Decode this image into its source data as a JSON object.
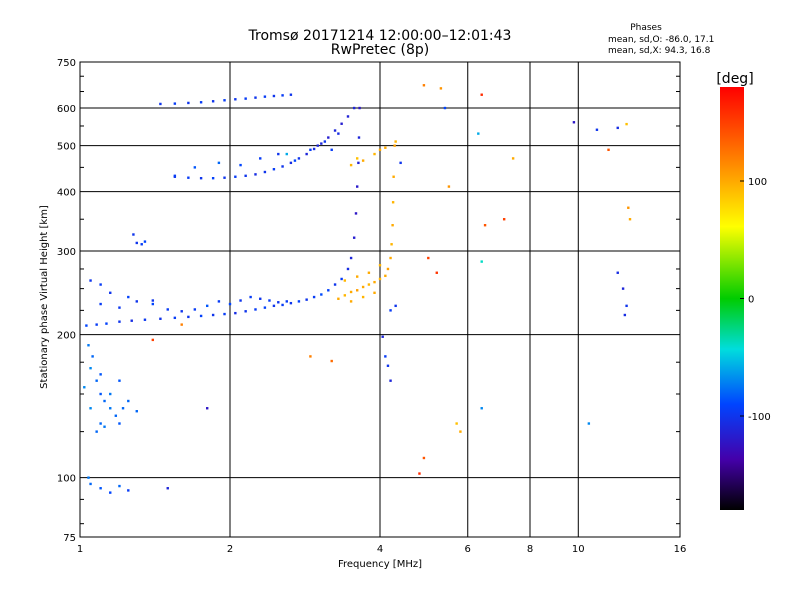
{
  "chart_data": {
    "type": "scatter",
    "title": "Tromsø 20171214 12:00:00–12:01:43",
    "subtitle": "RwPretec (8p)",
    "xlabel": "Frequency [MHz]",
    "ylabel": "Stationary phase Virtual Height [km]",
    "xscale": "log2",
    "yscale": "log",
    "xlim": [
      1,
      16
    ],
    "ylim": [
      75,
      750
    ],
    "xticks": [
      1,
      2,
      4,
      6,
      8,
      10,
      16
    ],
    "xtick_labels": [
      "1",
      "2",
      "4",
      "6",
      "8",
      "10",
      "16"
    ],
    "yticks": [
      75,
      100,
      200,
      300,
      400,
      500,
      600,
      750
    ],
    "ytick_labels": [
      "75",
      "100",
      "200",
      "300",
      "400",
      "500",
      "600",
      "750"
    ],
    "grid": true,
    "stats": {
      "heading": "Phases",
      "line_o": "mean, sd,O: -86.0, 17.1",
      "line_x": "mean, sd,X:  94.3, 16.8"
    },
    "colorbar": {
      "label": "[deg]",
      "range": [
        -180,
        180
      ],
      "ticks": [
        100,
        0,
        -100
      ],
      "tick_labels": [
        "100",
        "0",
        "-100"
      ]
    },
    "points": [
      [
        1.03,
        209,
        -90
      ],
      [
        1.08,
        210,
        -95
      ],
      [
        1.13,
        211,
        -92
      ],
      [
        1.2,
        213,
        -100
      ],
      [
        1.27,
        214,
        -105
      ],
      [
        1.35,
        215,
        -98
      ],
      [
        1.45,
        216,
        -102
      ],
      [
        1.55,
        217,
        -95
      ],
      [
        1.65,
        218,
        -100
      ],
      [
        1.75,
        219,
        -92
      ],
      [
        1.85,
        220,
        -100
      ],
      [
        1.95,
        221,
        -95
      ],
      [
        2.05,
        222,
        -105
      ],
      [
        2.15,
        224,
        -100
      ],
      [
        2.25,
        226,
        -95
      ],
      [
        2.35,
        228,
        -92
      ],
      [
        2.45,
        230,
        -100
      ],
      [
        2.55,
        231,
        -95
      ],
      [
        2.65,
        233,
        -100
      ],
      [
        2.75,
        235,
        -92
      ],
      [
        2.85,
        237,
        -100
      ],
      [
        2.95,
        240,
        -95
      ],
      [
        3.05,
        243,
        -88
      ],
      [
        3.15,
        248,
        -92
      ],
      [
        3.25,
        255,
        -100
      ],
      [
        3.35,
        262,
        -95
      ],
      [
        3.45,
        275,
        -105
      ],
      [
        3.5,
        290,
        -110
      ],
      [
        3.55,
        320,
        -115
      ],
      [
        3.58,
        360,
        -120
      ],
      [
        3.6,
        410,
        -118
      ],
      [
        3.62,
        460,
        -112
      ],
      [
        3.63,
        520,
        -110
      ],
      [
        3.64,
        600,
        -120
      ],
      [
        1.1,
        232,
        -95
      ],
      [
        1.2,
        228,
        -98
      ],
      [
        1.3,
        235,
        -100
      ],
      [
        1.4,
        232,
        -90
      ],
      [
        1.5,
        226,
        -95
      ],
      [
        1.6,
        224,
        -100
      ],
      [
        1.7,
        226,
        -95
      ],
      [
        1.8,
        230,
        -85
      ],
      [
        1.9,
        235,
        -95
      ],
      [
        2.0,
        232,
        -90
      ],
      [
        2.1,
        236,
        -100
      ],
      [
        2.2,
        240,
        -95
      ],
      [
        2.3,
        238,
        -100
      ],
      [
        2.4,
        236,
        -95
      ],
      [
        2.5,
        234,
        -100
      ],
      [
        2.6,
        235,
        -95
      ],
      [
        1.05,
        260,
        -100
      ],
      [
        1.1,
        255,
        -95
      ],
      [
        1.15,
        245,
        -100
      ],
      [
        1.25,
        240,
        -92
      ],
      [
        1.4,
        236,
        -100
      ],
      [
        1.3,
        312,
        -100
      ],
      [
        1.33,
        310,
        -95
      ],
      [
        1.35,
        314,
        -90
      ],
      [
        1.28,
        325,
        -100
      ],
      [
        1.55,
        430,
        -100
      ],
      [
        1.65,
        428,
        -95
      ],
      [
        1.75,
        427,
        -100
      ],
      [
        1.85,
        427,
        -92
      ],
      [
        1.95,
        428,
        -100
      ],
      [
        2.05,
        430,
        -95
      ],
      [
        2.15,
        432,
        -100
      ],
      [
        2.25,
        435,
        -105
      ],
      [
        2.35,
        440,
        -100
      ],
      [
        2.45,
        446,
        -95
      ],
      [
        2.55,
        452,
        -100
      ],
      [
        2.65,
        460,
        -105
      ],
      [
        2.75,
        470,
        -100
      ],
      [
        2.85,
        480,
        -110
      ],
      [
        2.95,
        492,
        -105
      ],
      [
        3.05,
        505,
        -110
      ],
      [
        3.15,
        520,
        -115
      ],
      [
        3.25,
        538,
        -110
      ],
      [
        3.35,
        556,
        -115
      ],
      [
        3.45,
        576,
        -112
      ],
      [
        3.55,
        600,
        -110
      ],
      [
        1.55,
        432,
        -95
      ],
      [
        1.7,
        450,
        -85
      ],
      [
        1.9,
        460,
        -80
      ],
      [
        2.1,
        455,
        -90
      ],
      [
        2.3,
        470,
        -95
      ],
      [
        2.5,
        480,
        -100
      ],
      [
        2.7,
        465,
        -90
      ],
      [
        2.9,
        490,
        -95
      ],
      [
        3.1,
        510,
        -100
      ],
      [
        3.3,
        530,
        -105
      ],
      [
        1.45,
        612,
        -100
      ],
      [
        1.55,
        613,
        -95
      ],
      [
        1.65,
        615,
        -100
      ],
      [
        1.75,
        617,
        -95
      ],
      [
        1.85,
        620,
        -100
      ],
      [
        1.95,
        623,
        -95
      ],
      [
        2.05,
        626,
        -100
      ],
      [
        2.15,
        628,
        -95
      ],
      [
        2.25,
        631,
        -100
      ],
      [
        2.35,
        634,
        -95
      ],
      [
        2.45,
        636,
        -100
      ],
      [
        2.55,
        638,
        -95
      ],
      [
        2.65,
        640,
        -100
      ],
      [
        3.3,
        238,
        100
      ],
      [
        3.4,
        242,
        95
      ],
      [
        3.5,
        246,
        100
      ],
      [
        3.6,
        248,
        105
      ],
      [
        3.7,
        252,
        100
      ],
      [
        3.8,
        255,
        95
      ],
      [
        3.9,
        258,
        100
      ],
      [
        4.0,
        262,
        95
      ],
      [
        4.1,
        266,
        100
      ],
      [
        4.15,
        275,
        105
      ],
      [
        4.2,
        290,
        100
      ],
      [
        4.22,
        310,
        95
      ],
      [
        4.24,
        340,
        100
      ],
      [
        4.25,
        380,
        95
      ],
      [
        4.26,
        430,
        100
      ],
      [
        4.28,
        500,
        105
      ],
      [
        3.4,
        260,
        95
      ],
      [
        3.6,
        265,
        100
      ],
      [
        3.8,
        270,
        100
      ],
      [
        4.0,
        280,
        95
      ],
      [
        3.5,
        235,
        100
      ],
      [
        3.7,
        240,
        95
      ],
      [
        3.9,
        245,
        100
      ],
      [
        3.5,
        455,
        95
      ],
      [
        3.7,
        465,
        100
      ],
      [
        3.9,
        480,
        95
      ],
      [
        4.1,
        495,
        100
      ],
      [
        4.3,
        510,
        95
      ],
      [
        3.6,
        470,
        90
      ],
      [
        4.0,
        490,
        100
      ],
      [
        1.04,
        190,
        -75
      ],
      [
        1.06,
        180,
        -80
      ],
      [
        1.05,
        170,
        -70
      ],
      [
        1.08,
        160,
        -80
      ],
      [
        1.1,
        150,
        -85
      ],
      [
        1.12,
        145,
        -80
      ],
      [
        1.15,
        140,
        -75
      ],
      [
        1.18,
        135,
        -80
      ],
      [
        1.2,
        130,
        -85
      ],
      [
        1.22,
        140,
        -80
      ],
      [
        1.15,
        150,
        -75
      ],
      [
        1.1,
        130,
        -80
      ],
      [
        1.05,
        140,
        -70
      ],
      [
        1.08,
        125,
        -80
      ],
      [
        1.2,
        160,
        -85
      ],
      [
        1.25,
        145,
        -80
      ],
      [
        1.1,
        165,
        -85
      ],
      [
        1.3,
        138,
        -80
      ],
      [
        1.02,
        155,
        -70
      ],
      [
        1.12,
        128,
        -75
      ],
      [
        1.05,
        97,
        -80
      ],
      [
        1.1,
        95,
        -85
      ],
      [
        1.15,
        93,
        -90
      ],
      [
        1.25,
        94,
        -95
      ],
      [
        1.5,
        95,
        -110
      ],
      [
        1.04,
        100,
        -75
      ],
      [
        1.2,
        96,
        -80
      ],
      [
        4.05,
        198,
        -110
      ],
      [
        4.1,
        180,
        -95
      ],
      [
        4.15,
        172,
        -100
      ],
      [
        4.3,
        230,
        -100
      ],
      [
        4.2,
        225,
        -95
      ],
      [
        2.9,
        180,
        120
      ],
      [
        3.2,
        176,
        130
      ],
      [
        1.4,
        195,
        150
      ],
      [
        1.6,
        210,
        120
      ],
      [
        4.9,
        670,
        120
      ],
      [
        5.3,
        660,
        110
      ],
      [
        6.4,
        640,
        160
      ],
      [
        5.5,
        410,
        110
      ],
      [
        6.5,
        340,
        140
      ],
      [
        7.1,
        350,
        150
      ],
      [
        6.3,
        530,
        -60
      ],
      [
        7.4,
        470,
        100
      ],
      [
        9.8,
        560,
        -120
      ],
      [
        10.9,
        540,
        -100
      ],
      [
        12.0,
        545,
        -105
      ],
      [
        12.5,
        555,
        90
      ],
      [
        11.5,
        490,
        140
      ],
      [
        12.6,
        370,
        110
      ],
      [
        12.7,
        350,
        100
      ],
      [
        5.0,
        290,
        150
      ],
      [
        5.2,
        270,
        155
      ],
      [
        12.0,
        270,
        -105
      ],
      [
        12.3,
        250,
        -110
      ],
      [
        12.5,
        230,
        -100
      ],
      [
        12.4,
        220,
        -105
      ],
      [
        6.4,
        140,
        -70
      ],
      [
        10.5,
        130,
        -70
      ],
      [
        4.8,
        102,
        160
      ],
      [
        4.9,
        110,
        140
      ],
      [
        5.7,
        130,
        90
      ],
      [
        5.8,
        125,
        100
      ],
      [
        6.4,
        285,
        -40
      ],
      [
        4.2,
        160,
        -110
      ],
      [
        1.8,
        140,
        -120
      ],
      [
        4.4,
        460,
        -100
      ],
      [
        5.4,
        600,
        -90
      ],
      [
        2.6,
        480,
        -60
      ],
      [
        3.0,
        500,
        -110
      ],
      [
        3.2,
        490,
        -95
      ]
    ]
  }
}
